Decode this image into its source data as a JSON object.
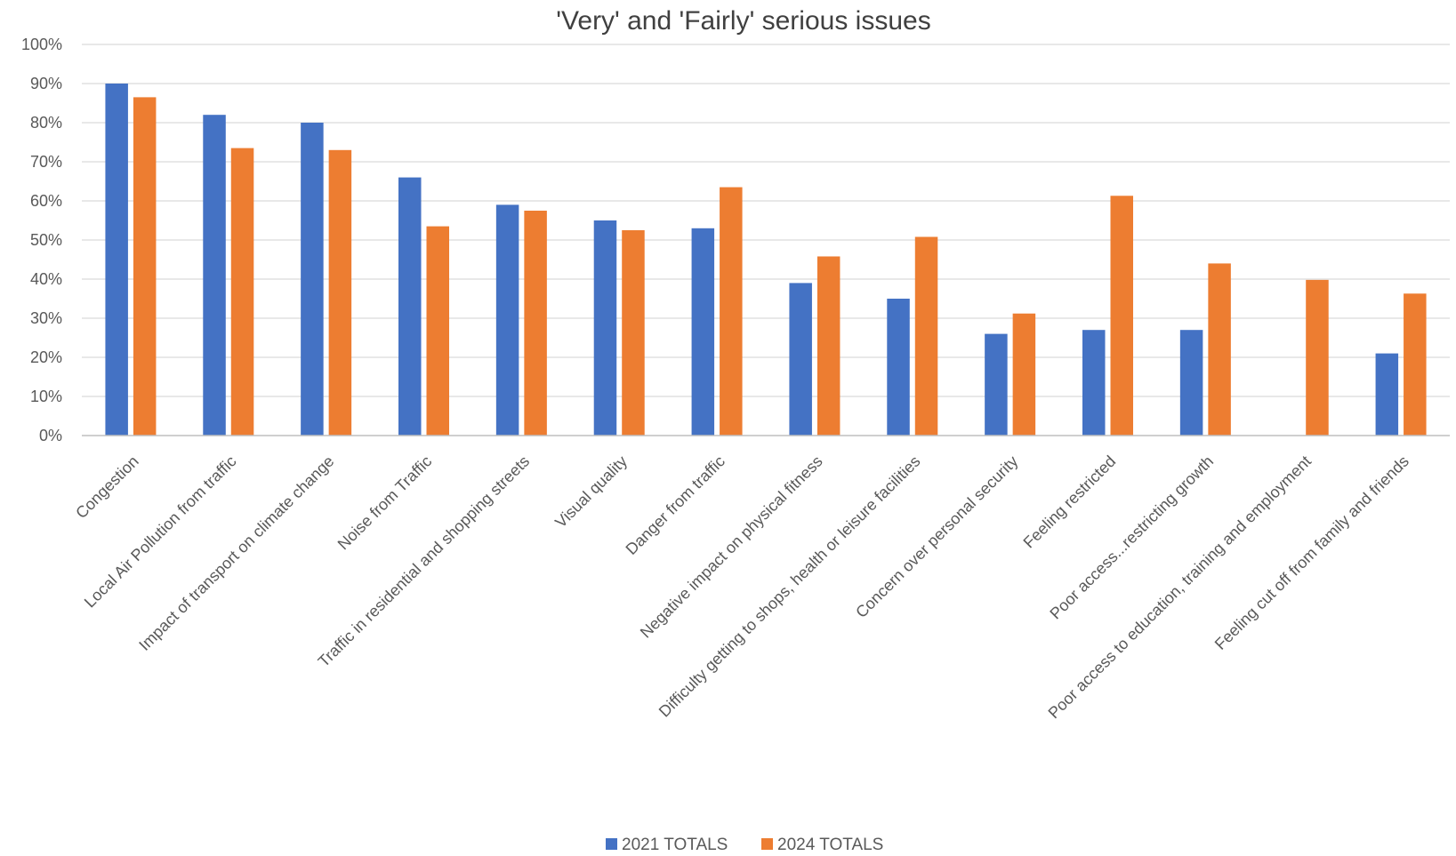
{
  "chart_data": {
    "type": "bar",
    "title": "'Very' and 'Fairly' serious issues",
    "xlabel": "",
    "ylabel": "",
    "ylim": [
      0,
      100
    ],
    "ytick_step": 10,
    "ytick_format": "percent",
    "grid": true,
    "legend_position": "bottom",
    "categories": [
      "Congestion",
      "Local Air Pollution from traffic",
      "Impact of transport on climate change",
      "Noise from Traffic",
      "Traffic in residential and shopping streets",
      "Visual quality",
      "Danger from traffic",
      "Negative impact on physical fitness",
      "Difficulty getting to shops, health or leisure facilities",
      "Concern over personal security",
      "Feeling restricted",
      "Poor access...restricting growth",
      "Poor access to education, training and employment",
      "Feeling cut off from family and friends"
    ],
    "series": [
      {
        "name": "2021 TOTALS",
        "color": "#4472c4",
        "values": [
          90,
          82,
          80,
          66,
          59,
          55,
          53,
          39,
          35,
          26,
          27,
          27,
          null,
          21
        ]
      },
      {
        "name": "2024 TOTALS",
        "color": "#ed7d31",
        "values": [
          86.5,
          73.5,
          73,
          53.5,
          57.5,
          52.5,
          63.5,
          45.8,
          50.8,
          31.2,
          61.3,
          44,
          39.8,
          36.3
        ]
      }
    ]
  }
}
